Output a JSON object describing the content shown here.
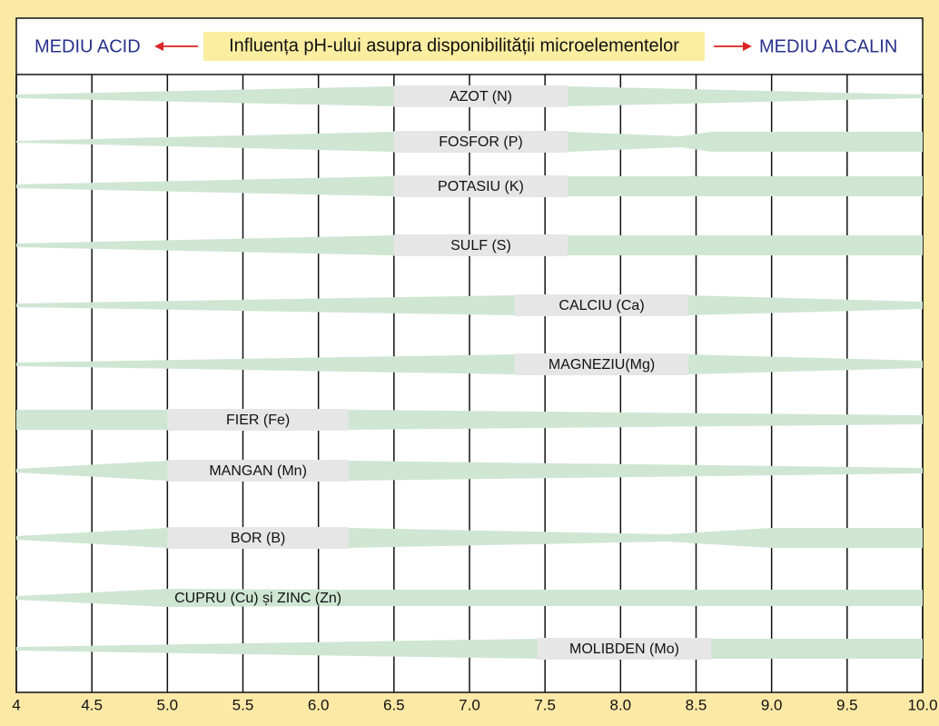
{
  "header": {
    "left": "MEDIU ACID",
    "title": "Influența pH-ului asupra disponibilității microelementelor",
    "right": "MEDIU ALCALIN"
  },
  "axis": {
    "xlim": [
      4,
      10
    ],
    "xticks": [
      4,
      4.5,
      {
        "value": 5,
        "label": "5.0"
      },
      5.5,
      {
        "value": 6,
        "label": "6.0"
      },
      6.5,
      {
        "value": 7,
        "label": "7.0"
      },
      7.5,
      {
        "value": 8,
        "label": "8.0"
      },
      8.5,
      {
        "value": 9,
        "label": "9.0"
      },
      9.5,
      {
        "value": 10,
        "label": "10.0"
      }
    ]
  },
  "nutrients": [
    "AZOT (N)",
    "FOSFOR (P)",
    "POTASIU (K)",
    "SULF (S)",
    "CALCIU (Ca)",
    "MAGNEZIU(Mg)",
    "FIER (Fe)",
    "MANGAN (Mn)",
    "BOR (B)",
    "CUPRU (Cu) și ZINC (Zn)",
    "MOLIBDEN (Mo)"
  ]
}
